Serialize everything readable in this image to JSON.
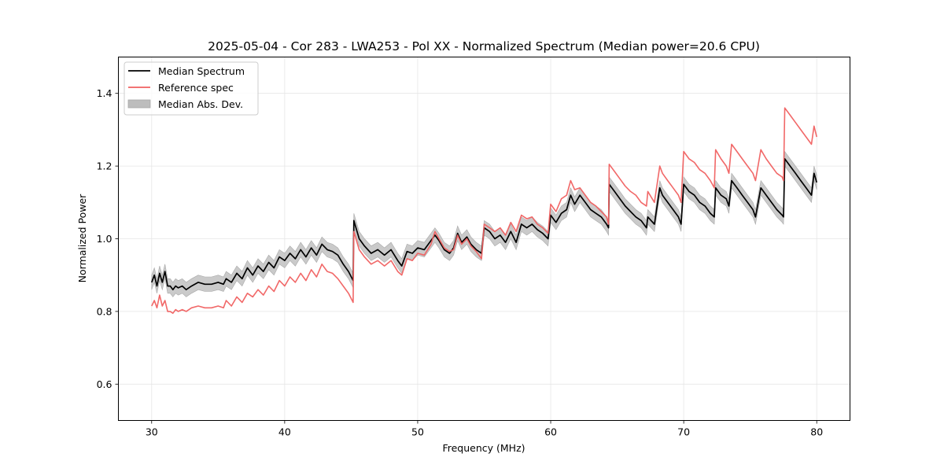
{
  "chart_data": {
    "type": "line",
    "title": "2025-05-04 - Cor 283 - LWA253 - Pol XX - Normalized Spectrum (Median power=20.6 CPU)",
    "xlabel": "Frequency (MHz)",
    "ylabel": "Normalized Power",
    "xlim": [
      27.5,
      82.5
    ],
    "ylim": [
      0.5,
      1.5
    ],
    "xticks": [
      30,
      40,
      50,
      60,
      70,
      80
    ],
    "xtick_labels": [
      "30",
      "40",
      "50",
      "60",
      "70",
      "80"
    ],
    "yticks": [
      0.6,
      0.8,
      1.0,
      1.2,
      1.4
    ],
    "ytick_labels": [
      "0.6",
      "0.8",
      "1.0",
      "1.2",
      "1.4"
    ],
    "grid": true,
    "legend": {
      "placement": "top-left",
      "entries": [
        {
          "label": "Median Spectrum",
          "kind": "line",
          "color": "#000000"
        },
        {
          "label": "Reference spec",
          "kind": "line",
          "color": "#f06060"
        },
        {
          "label": "Median Abs. Dev.",
          "kind": "patch",
          "color": "#bdbdbd"
        }
      ]
    },
    "series": [
      {
        "name": "Median Spectrum",
        "color": "#000000",
        "mad": 0.02,
        "x": [
          30.0,
          30.2,
          30.4,
          30.6,
          30.8,
          31.0,
          31.2,
          31.4,
          31.6,
          31.8,
          32.0,
          32.3,
          32.6,
          33.0,
          33.5,
          34.0,
          34.5,
          35.0,
          35.4,
          35.6,
          36.0,
          36.4,
          36.8,
          37.2,
          37.6,
          38.0,
          38.4,
          38.8,
          39.2,
          39.6,
          40.0,
          40.4,
          40.8,
          41.2,
          41.6,
          42.0,
          42.4,
          42.8,
          43.2,
          43.6,
          44.0,
          44.4,
          44.8,
          45.15,
          45.2,
          45.6,
          46.0,
          46.5,
          47.0,
          47.5,
          48.0,
          48.5,
          48.8,
          49.2,
          49.6,
          50.0,
          50.5,
          51.0,
          51.3,
          51.6,
          52.0,
          52.4,
          52.7,
          53.0,
          53.3,
          53.7,
          54.0,
          54.4,
          54.8,
          55.0,
          55.4,
          55.8,
          56.2,
          56.6,
          57.0,
          57.4,
          57.8,
          58.2,
          58.6,
          59.0,
          59.4,
          59.8,
          60.0,
          60.4,
          60.8,
          61.2,
          61.5,
          61.8,
          62.2,
          62.6,
          63.0,
          63.4,
          63.8,
          64.2,
          64.35,
          64.4,
          64.8,
          65.2,
          65.6,
          66.0,
          66.4,
          66.8,
          67.2,
          67.3,
          67.8,
          68.2,
          68.4,
          68.8,
          69.2,
          69.6,
          69.8,
          70.0,
          70.4,
          70.8,
          71.2,
          71.6,
          72.0,
          72.3,
          72.4,
          72.8,
          73.2,
          73.4,
          73.6,
          74.0,
          74.4,
          74.8,
          75.2,
          75.4,
          75.8,
          76.2,
          76.6,
          77.0,
          77.4,
          77.5,
          77.6,
          78.0,
          78.4,
          78.8,
          79.2,
          79.6,
          79.8,
          80.0
        ],
        "y": [
          0.88,
          0.9,
          0.87,
          0.905,
          0.88,
          0.91,
          0.87,
          0.87,
          0.86,
          0.87,
          0.865,
          0.87,
          0.86,
          0.87,
          0.88,
          0.875,
          0.875,
          0.88,
          0.875,
          0.89,
          0.88,
          0.905,
          0.89,
          0.92,
          0.9,
          0.925,
          0.91,
          0.935,
          0.92,
          0.95,
          0.94,
          0.96,
          0.945,
          0.97,
          0.95,
          0.975,
          0.955,
          0.985,
          0.97,
          0.965,
          0.955,
          0.93,
          0.91,
          0.885,
          1.05,
          1.0,
          0.98,
          0.96,
          0.97,
          0.955,
          0.97,
          0.94,
          0.925,
          0.965,
          0.96,
          0.975,
          0.97,
          0.995,
          1.01,
          0.995,
          0.97,
          0.96,
          0.975,
          1.015,
          0.99,
          1.005,
          0.985,
          0.97,
          0.96,
          1.03,
          1.02,
          1.0,
          1.01,
          0.99,
          1.02,
          0.99,
          1.04,
          1.03,
          1.04,
          1.025,
          1.015,
          1.0,
          1.065,
          1.045,
          1.07,
          1.08,
          1.12,
          1.095,
          1.12,
          1.1,
          1.08,
          1.07,
          1.06,
          1.04,
          1.03,
          1.15,
          1.13,
          1.11,
          1.09,
          1.075,
          1.06,
          1.05,
          1.03,
          1.06,
          1.04,
          1.14,
          1.12,
          1.1,
          1.08,
          1.06,
          1.04,
          1.15,
          1.13,
          1.12,
          1.1,
          1.09,
          1.07,
          1.06,
          1.14,
          1.12,
          1.11,
          1.09,
          1.16,
          1.14,
          1.12,
          1.1,
          1.08,
          1.06,
          1.14,
          1.12,
          1.1,
          1.08,
          1.065,
          1.06,
          1.22,
          1.2,
          1.18,
          1.16,
          1.14,
          1.12,
          1.18,
          1.155
        ]
      },
      {
        "name": "Reference spec",
        "color": "#f06060",
        "x": [
          30.0,
          30.2,
          30.4,
          30.6,
          30.8,
          31.0,
          31.2,
          31.4,
          31.6,
          31.8,
          32.0,
          32.3,
          32.6,
          33.0,
          33.5,
          34.0,
          34.5,
          35.0,
          35.4,
          35.6,
          36.0,
          36.4,
          36.8,
          37.2,
          37.6,
          38.0,
          38.4,
          38.8,
          39.2,
          39.6,
          40.0,
          40.4,
          40.8,
          41.2,
          41.6,
          42.0,
          42.4,
          42.8,
          43.2,
          43.6,
          44.0,
          44.4,
          44.8,
          45.15,
          45.2,
          45.6,
          46.0,
          46.5,
          47.0,
          47.5,
          48.0,
          48.5,
          48.8,
          49.2,
          49.6,
          50.0,
          50.5,
          51.0,
          51.3,
          51.6,
          52.0,
          52.4,
          52.7,
          53.0,
          53.3,
          53.7,
          54.0,
          54.4,
          54.8,
          55.0,
          55.4,
          55.8,
          56.2,
          56.6,
          57.0,
          57.4,
          57.8,
          58.2,
          58.6,
          59.0,
          59.4,
          59.8,
          60.0,
          60.4,
          60.8,
          61.2,
          61.5,
          61.8,
          62.2,
          62.6,
          63.0,
          63.4,
          63.8,
          64.2,
          64.35,
          64.4,
          64.8,
          65.2,
          65.6,
          66.0,
          66.4,
          66.8,
          67.2,
          67.3,
          67.8,
          68.2,
          68.4,
          68.8,
          69.2,
          69.6,
          69.8,
          70.0,
          70.4,
          70.8,
          71.2,
          71.6,
          72.0,
          72.3,
          72.4,
          72.8,
          73.2,
          73.4,
          73.6,
          74.0,
          74.4,
          74.8,
          75.2,
          75.4,
          75.8,
          76.2,
          76.6,
          77.0,
          77.4,
          77.5,
          77.6,
          78.0,
          78.4,
          78.8,
          79.2,
          79.6,
          79.8,
          80.0
        ],
        "y": [
          0.815,
          0.83,
          0.81,
          0.845,
          0.815,
          0.83,
          0.8,
          0.8,
          0.795,
          0.805,
          0.8,
          0.805,
          0.8,
          0.81,
          0.815,
          0.81,
          0.81,
          0.815,
          0.81,
          0.83,
          0.815,
          0.84,
          0.825,
          0.85,
          0.84,
          0.86,
          0.845,
          0.87,
          0.855,
          0.885,
          0.87,
          0.895,
          0.88,
          0.905,
          0.885,
          0.915,
          0.895,
          0.93,
          0.91,
          0.905,
          0.89,
          0.87,
          0.85,
          0.825,
          1.02,
          0.97,
          0.95,
          0.93,
          0.94,
          0.925,
          0.94,
          0.91,
          0.9,
          0.945,
          0.94,
          0.96,
          0.955,
          0.985,
          1.02,
          1.0,
          0.975,
          0.965,
          0.97,
          1.01,
          0.985,
          1.0,
          0.98,
          0.965,
          0.945,
          1.04,
          1.03,
          1.02,
          1.03,
          1.01,
          1.045,
          1.02,
          1.065,
          1.055,
          1.06,
          1.04,
          1.03,
          1.015,
          1.095,
          1.075,
          1.11,
          1.12,
          1.16,
          1.135,
          1.14,
          1.12,
          1.1,
          1.09,
          1.075,
          1.06,
          1.04,
          1.205,
          1.185,
          1.165,
          1.145,
          1.13,
          1.12,
          1.1,
          1.09,
          1.13,
          1.1,
          1.2,
          1.18,
          1.16,
          1.14,
          1.12,
          1.1,
          1.24,
          1.22,
          1.21,
          1.19,
          1.18,
          1.16,
          1.14,
          1.245,
          1.22,
          1.2,
          1.18,
          1.26,
          1.24,
          1.22,
          1.2,
          1.18,
          1.16,
          1.245,
          1.22,
          1.2,
          1.18,
          1.17,
          1.16,
          1.36,
          1.34,
          1.32,
          1.3,
          1.28,
          1.26,
          1.31,
          1.28
        ]
      }
    ]
  }
}
